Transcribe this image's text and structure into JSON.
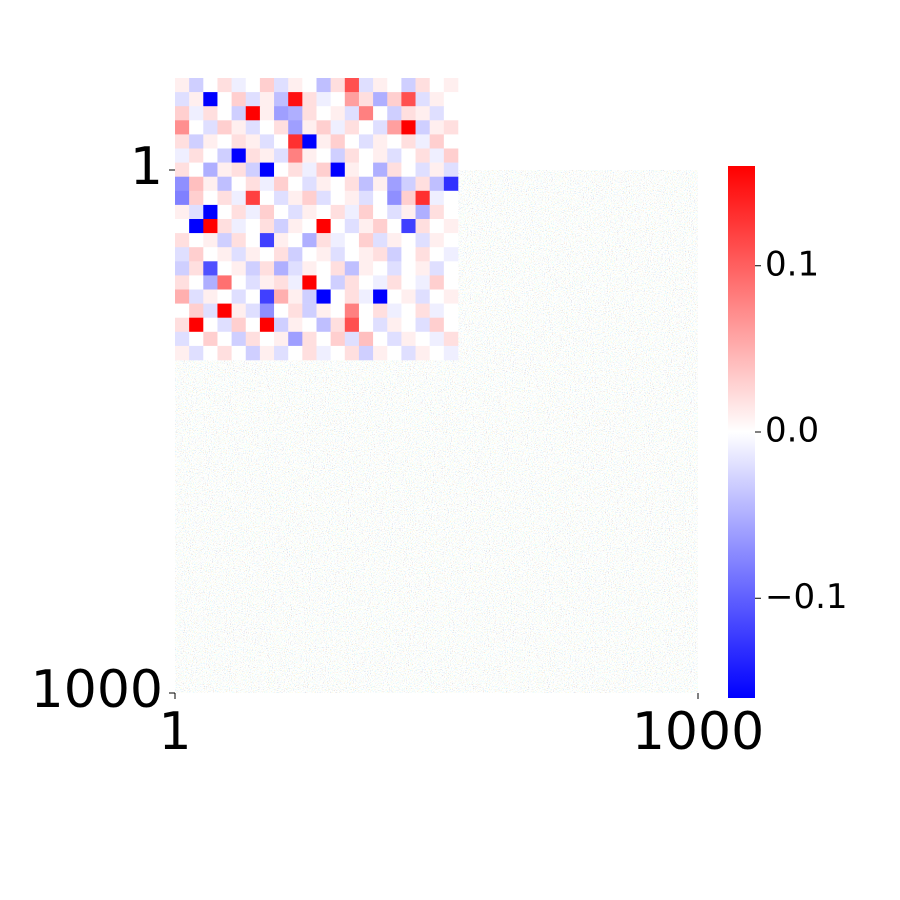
{
  "chart_data": {
    "type": "heatmap",
    "xlim": [
      1,
      1000
    ],
    "ylim": [
      1,
      1000
    ],
    "xticks": [
      1,
      1000
    ],
    "yticks": [
      1,
      1000
    ],
    "clim": [
      -0.16,
      0.16
    ],
    "cticks": [
      0.1,
      {
        "value": 0,
        "label": "0.0"
      },
      {
        "value": -0.1,
        "label": "−0.1"
      }
    ],
    "colormap": [
      "#0000ff",
      "#ffffff",
      "#ff0000"
    ],
    "inset_values": [
      [
        0.01,
        -0.03,
        0.0,
        0.02,
        -0.01,
        0.0,
        0.03,
        -0.02,
        0.01,
        0.0,
        -0.04,
        0.02,
        0.11,
        -0.02,
        0.01,
        0.0,
        -0.03,
        0.02,
        0.0,
        0.01
      ],
      [
        -0.02,
        0.01,
        -0.16,
        0.0,
        0.03,
        -0.02,
        0.01,
        -0.04,
        0.15,
        0.02,
        -0.01,
        0.0,
        0.06,
        0.02,
        -0.05,
        0.03,
        0.11,
        -0.02,
        0.01,
        0.0
      ],
      [
        0.03,
        -0.01,
        0.02,
        0.0,
        -0.03,
        0.16,
        0.01,
        -0.06,
        -0.05,
        0.02,
        0.0,
        0.01,
        -0.02,
        0.08,
        0.0,
        -0.03,
        0.02,
        0.01,
        -0.02,
        0.0
      ],
      [
        0.07,
        0.0,
        -0.02,
        0.03,
        0.01,
        -0.02,
        0.0,
        0.02,
        -0.06,
        0.01,
        0.03,
        -0.01,
        0.02,
        0.0,
        -0.02,
        0.06,
        0.16,
        -0.03,
        0.01,
        0.02
      ],
      [
        0.02,
        -0.03,
        0.01,
        0.0,
        0.02,
        0.01,
        -0.02,
        0.0,
        0.13,
        -0.16,
        0.01,
        0.03,
        0.0,
        -0.02,
        0.01,
        0.0,
        0.02,
        -0.01,
        0.03,
        0.0
      ],
      [
        -0.01,
        0.02,
        0.0,
        -0.03,
        -0.16,
        0.02,
        0.01,
        -0.02,
        0.08,
        0.01,
        0.0,
        -0.03,
        0.02,
        0.0,
        0.01,
        -0.02,
        0.0,
        0.02,
        -0.01,
        0.03
      ],
      [
        0.02,
        0.0,
        -0.05,
        0.01,
        0.02,
        -0.03,
        -0.16,
        0.0,
        0.02,
        -0.01,
        0.03,
        -0.16,
        0.01,
        0.0,
        -0.05,
        0.02,
        0.0,
        -0.02,
        0.01,
        -0.02
      ],
      [
        -0.07,
        0.04,
        0.01,
        -0.04,
        0.0,
        0.02,
        -0.01,
        0.03,
        0.0,
        -0.02,
        0.01,
        0.0,
        0.02,
        -0.04,
        0.01,
        -0.06,
        -0.03,
        0.02,
        -0.04,
        -0.13
      ],
      [
        -0.08,
        0.03,
        0.0,
        0.02,
        -0.01,
        0.12,
        0.0,
        -0.02,
        0.01,
        0.03,
        -0.02,
        0.0,
        0.01,
        -0.02,
        0.0,
        -0.07,
        0.03,
        0.13,
        -0.01,
        0.0
      ],
      [
        0.01,
        -0.02,
        -0.16,
        0.0,
        0.02,
        -0.01,
        0.03,
        0.0,
        -0.02,
        0.01,
        0.0,
        0.02,
        -0.01,
        0.03,
        0.0,
        -0.02,
        0.01,
        -0.05,
        0.02,
        0.0
      ],
      [
        0.0,
        -0.16,
        0.16,
        0.02,
        -0.01,
        0.0,
        0.02,
        -0.03,
        0.01,
        0.0,
        0.16,
        0.0,
        -0.02,
        0.01,
        0.03,
        0.0,
        -0.12,
        0.02,
        0.0,
        0.01
      ],
      [
        0.02,
        0.0,
        0.01,
        -0.03,
        0.02,
        0.0,
        -0.12,
        0.01,
        0.0,
        -0.05,
        0.02,
        -0.01,
        0.0,
        0.03,
        -0.02,
        0.01,
        0.0,
        -0.02,
        0.01,
        0.0
      ],
      [
        -0.02,
        0.03,
        0.0,
        0.01,
        -0.02,
        0.01,
        0.0,
        0.02,
        -0.03,
        0.0,
        0.01,
        -0.02,
        0.0,
        0.01,
        0.02,
        -0.03,
        0.0,
        0.02,
        0.0,
        -0.01
      ],
      [
        -0.03,
        0.02,
        -0.11,
        0.0,
        0.01,
        -0.03,
        0.02,
        -0.05,
        -0.02,
        0.01,
        0.0,
        0.02,
        -0.04,
        0.01,
        0.0,
        -0.02,
        0.0,
        0.01,
        -0.02,
        0.0
      ],
      [
        0.02,
        0.0,
        -0.05,
        0.09,
        0.0,
        -0.02,
        0.01,
        0.02,
        -0.01,
        0.16,
        0.0,
        -0.03,
        0.02,
        0.0,
        -0.01,
        0.02,
        0.0,
        -0.01,
        0.03,
        0.0
      ],
      [
        0.05,
        -0.02,
        0.01,
        0.0,
        -0.02,
        0.0,
        -0.12,
        0.05,
        0.01,
        -0.03,
        -0.16,
        0.0,
        0.02,
        -0.01,
        -0.16,
        0.0,
        0.01,
        -0.02,
        0.0,
        0.01
      ],
      [
        0.0,
        0.03,
        -0.02,
        0.16,
        0.01,
        -0.02,
        -0.07,
        0.0,
        0.02,
        -0.03,
        0.01,
        0.0,
        0.08,
        0.0,
        0.02,
        -0.01,
        0.0,
        0.02,
        -0.01,
        0.0
      ],
      [
        0.02,
        0.16,
        0.0,
        -0.02,
        0.03,
        0.0,
        0.16,
        -0.03,
        0.01,
        0.0,
        -0.04,
        0.02,
        0.11,
        0.0,
        -0.02,
        0.01,
        0.0,
        -0.02,
        0.03,
        0.0
      ],
      [
        -0.02,
        0.0,
        0.03,
        0.0,
        -0.03,
        0.02,
        0.0,
        0.01,
        -0.06,
        0.02,
        0.0,
        0.03,
        -0.02,
        0.04,
        0.0,
        -0.02,
        0.01,
        0.0,
        -0.01,
        0.02
      ],
      [
        0.01,
        -0.02,
        0.0,
        0.02,
        0.0,
        -0.03,
        0.01,
        -0.02,
        0.0,
        0.02,
        -0.01,
        0.0,
        0.02,
        -0.03,
        0.01,
        0.0,
        -0.02,
        0.01,
        0.0,
        -0.01
      ]
    ]
  }
}
